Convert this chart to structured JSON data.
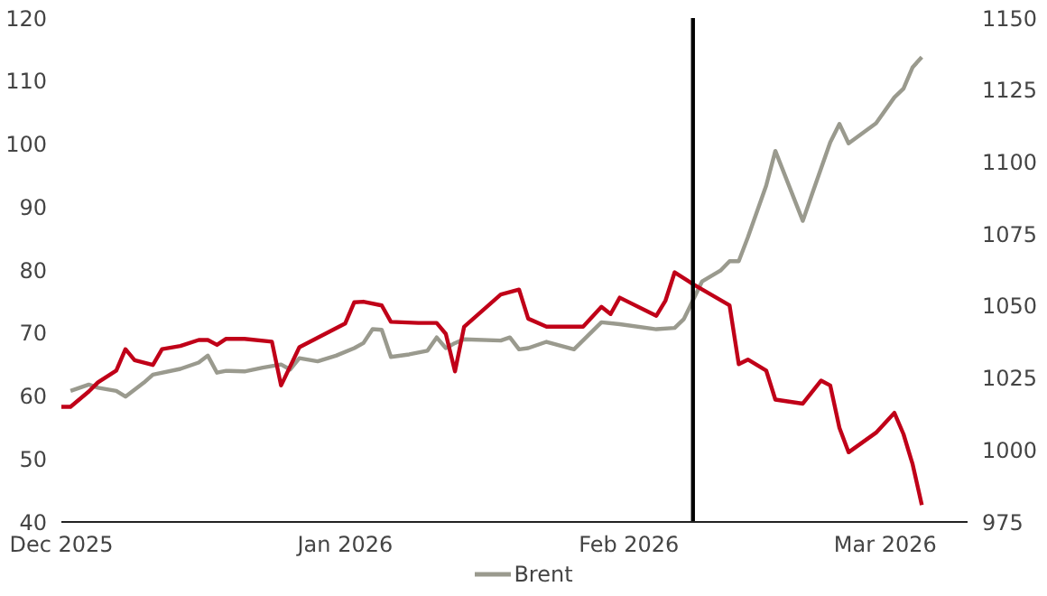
{
  "chart_data": {
    "type": "line",
    "xlim": [
      "2025-12-01",
      "2026-03-10"
    ],
    "xticks": [
      {
        "value": "2025-12-01",
        "label": "Dec 2025"
      },
      {
        "value": "2026-01-01",
        "label": "Jan 2026"
      },
      {
        "value": "2026-02-01",
        "label": "Feb 2026"
      },
      {
        "value": "2026-03-01",
        "label": "Mar 2026"
      }
    ],
    "ylim": [
      40,
      120
    ],
    "yticks": [
      40,
      50,
      60,
      70,
      80,
      90,
      100,
      110,
      120
    ],
    "y2lim": [
      975,
      1150
    ],
    "y2ticks": [
      975,
      1000,
      1025,
      1050,
      1075,
      1100,
      1125,
      1150
    ],
    "grid": false,
    "legend": "bottom",
    "marker": "none",
    "line_style": "solid",
    "ref_lines": [
      {
        "axis": "x",
        "value": "2026-02-08",
        "color": "#000000"
      }
    ],
    "series": [
      {
        "name": "Brent",
        "color": "#9a9a8e",
        "x": [
          "2025-12-02",
          "2025-12-04",
          "2025-12-05",
          "2025-12-07",
          "2025-12-08",
          "2025-12-10",
          "2025-12-11",
          "2025-12-14",
          "2025-12-16",
          "2025-12-17",
          "2025-12-18",
          "2025-12-19",
          "2025-12-21",
          "2025-12-23",
          "2025-12-25",
          "2025-12-26",
          "2025-12-27",
          "2025-12-29",
          "2025-12-31",
          "2026-01-02",
          "2026-01-03",
          "2026-01-04",
          "2026-01-05",
          "2026-01-06",
          "2026-01-08",
          "2026-01-10",
          "2026-01-11",
          "2026-01-12",
          "2026-01-13",
          "2026-01-14",
          "2026-01-18",
          "2026-01-19",
          "2026-01-20",
          "2026-01-21",
          "2026-01-23",
          "2026-01-26",
          "2026-01-29",
          "2026-01-31",
          "2026-02-04",
          "2026-02-06",
          "2026-02-07",
          "2026-02-09",
          "2026-02-11",
          "2026-02-12",
          "2026-02-13",
          "2026-02-14",
          "2026-02-16",
          "2026-02-17",
          "2026-02-20",
          "2026-02-21",
          "2026-02-23",
          "2026-02-24",
          "2026-02-25",
          "2026-02-28",
          "2026-03-02",
          "2026-03-03",
          "2026-03-04",
          "2026-03-05"
        ],
        "values": [
          60.8,
          61.8,
          61.3,
          60.8,
          59.9,
          62.1,
          63.4,
          64.3,
          65.3,
          66.4,
          63.7,
          64.0,
          63.9,
          64.5,
          65.0,
          64.2,
          66.0,
          65.5,
          66.4,
          67.6,
          68.4,
          70.6,
          70.5,
          66.2,
          66.6,
          67.2,
          69.3,
          67.6,
          68.4,
          69.0,
          68.8,
          69.3,
          67.4,
          67.6,
          68.6,
          67.4,
          71.7,
          71.4,
          70.6,
          70.8,
          72.2,
          78.2,
          79.9,
          81.4,
          81.4,
          85.2,
          93.4,
          98.9,
          87.8,
          92.0,
          100.3,
          103.2,
          100.1,
          103.3,
          107.4,
          108.8,
          112.2,
          113.8
        ]
      },
      {
        "color": "#c00018",
        "axis": "y2",
        "x": [
          "2025-12-01",
          "2025-12-02",
          "2025-12-04",
          "2025-12-05",
          "2025-12-07",
          "2025-12-08",
          "2025-12-09",
          "2025-12-11",
          "2025-12-12",
          "2025-12-14",
          "2025-12-16",
          "2025-12-17",
          "2025-12-18",
          "2025-12-19",
          "2025-12-21",
          "2025-12-24",
          "2025-12-25",
          "2025-12-27",
          "2026-01-01",
          "2026-01-02",
          "2026-01-03",
          "2026-01-05",
          "2026-01-06",
          "2026-01-09",
          "2026-01-11",
          "2026-01-12",
          "2026-01-13",
          "2026-01-14",
          "2026-01-18",
          "2026-01-20",
          "2026-01-21",
          "2026-01-23",
          "2026-01-27",
          "2026-01-29",
          "2026-01-30",
          "2026-01-31",
          "2026-02-04",
          "2026-02-05",
          "2026-02-06",
          "2026-02-08",
          "2026-02-12",
          "2026-02-13",
          "2026-02-14",
          "2026-02-16",
          "2026-02-17",
          "2026-02-20",
          "2026-02-22",
          "2026-02-23",
          "2026-02-24",
          "2026-02-25",
          "2026-02-28",
          "2026-03-02",
          "2026-03-03",
          "2026-03-04",
          "2026-03-05"
        ],
        "values": [
          1015.0,
          1015.0,
          1020.3,
          1023.5,
          1027.6,
          1035.0,
          1031.2,
          1029.5,
          1035.0,
          1036.1,
          1038.2,
          1038.2,
          1036.5,
          1038.6,
          1038.6,
          1037.6,
          1022.4,
          1035.7,
          1043.9,
          1051.3,
          1051.5,
          1050.2,
          1044.5,
          1044.1,
          1044.1,
          1040.3,
          1027.3,
          1042.8,
          1054.0,
          1055.7,
          1045.6,
          1042.8,
          1042.8,
          1049.7,
          1047.2,
          1052.9,
          1046.6,
          1051.9,
          1061.7,
          1057.6,
          1050.2,
          1029.8,
          1031.4,
          1027.6,
          1017.5,
          1016.1,
          1024.1,
          1022.4,
          1007.7,
          999.2,
          1006.0,
          1012.9,
          1005.5,
          995.0,
          980.9
        ]
      }
    ]
  }
}
